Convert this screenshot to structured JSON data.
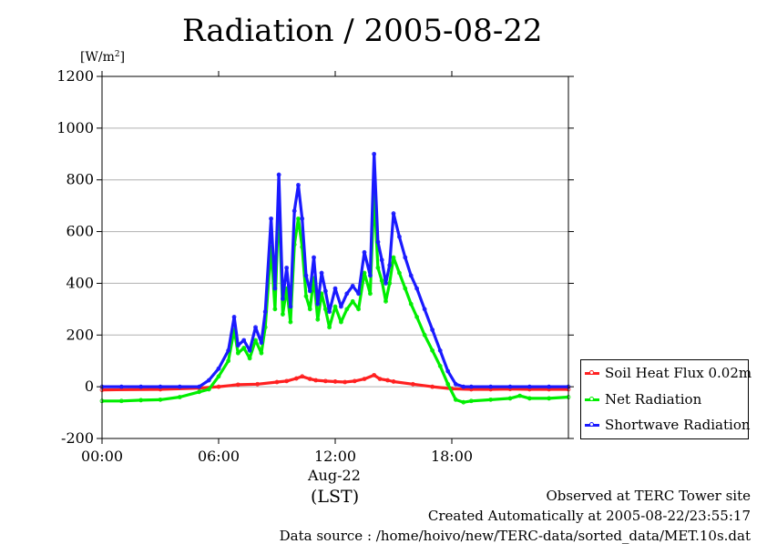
{
  "title": "Radiation / 2005-08-22",
  "unit_label": "[W/m",
  "unit_exp": "2",
  "unit_close": "]",
  "x_date_label": "Aug-22",
  "x_axis_label": "(LST)",
  "footer": {
    "line1": "Observed at TERC Tower site",
    "line2": "Created Automatically at 2005-08-22/23:55:17",
    "line3": "Data source : /home/hoivo/new/TERC-data/sorted_data/MET.10s.dat"
  },
  "colors": {
    "soil": "#ff2020",
    "net": "#00ee00",
    "shortwave": "#1a1aff",
    "grid": "#b0b0b0"
  },
  "chart_data": {
    "type": "line",
    "title": "Radiation / 2005-08-22",
    "ylabel": "[W/m2]",
    "xlabel": "(LST)",
    "xlim": [
      0,
      24
    ],
    "ylim": [
      -200,
      1200
    ],
    "grid": true,
    "legend_position": "right",
    "yticks": [
      -200,
      0,
      200,
      400,
      600,
      800,
      1000,
      1200
    ],
    "ytick_labels": [
      "-200",
      "0",
      "200",
      "400",
      "600",
      "800",
      "1000",
      "1200"
    ],
    "xticks": [
      0,
      6,
      12,
      18
    ],
    "xtick_labels": [
      "00:00",
      "06:00",
      "12:00",
      "18:00"
    ],
    "series": [
      {
        "name": "Soil Heat Flux 0.02m",
        "color_key": "soil",
        "x": [
          0,
          3,
          5,
          6,
          7,
          8,
          9,
          9.5,
          10,
          10.3,
          10.7,
          11,
          11.5,
          12,
          12.5,
          13,
          13.5,
          14,
          14.3,
          14.7,
          15,
          16,
          17,
          18,
          19,
          20,
          21,
          22,
          23,
          24
        ],
        "y": [
          -12,
          -10,
          -5,
          0,
          8,
          10,
          18,
          22,
          32,
          40,
          30,
          25,
          22,
          20,
          18,
          22,
          30,
          45,
          30,
          25,
          20,
          10,
          0,
          -8,
          -10,
          -10,
          -9,
          -10,
          -10,
          -10
        ]
      },
      {
        "name": "Net Radiation",
        "color_key": "net",
        "x": [
          0,
          1,
          2,
          3,
          4,
          5,
          5.5,
          6,
          6.5,
          6.8,
          7,
          7.3,
          7.6,
          7.9,
          8.2,
          8.4,
          8.7,
          8.9,
          9.1,
          9.3,
          9.5,
          9.7,
          9.9,
          10.1,
          10.3,
          10.5,
          10.7,
          10.9,
          11.1,
          11.3,
          11.5,
          11.7,
          12,
          12.3,
          12.6,
          12.9,
          13.2,
          13.5,
          13.8,
          14,
          14.2,
          14.4,
          14.6,
          14.8,
          15,
          15.3,
          15.6,
          15.9,
          16.2,
          16.6,
          17,
          17.4,
          17.8,
          18.2,
          18.6,
          19,
          20,
          21,
          21.5,
          22,
          23,
          24
        ],
        "y": [
          -55,
          -55,
          -52,
          -50,
          -40,
          -20,
          -10,
          40,
          100,
          220,
          130,
          150,
          110,
          180,
          130,
          230,
          540,
          300,
          720,
          280,
          380,
          250,
          550,
          650,
          540,
          350,
          300,
          420,
          260,
          360,
          300,
          230,
          310,
          250,
          300,
          330,
          300,
          440,
          360,
          750,
          460,
          410,
          330,
          400,
          500,
          440,
          380,
          320,
          270,
          200,
          140,
          80,
          10,
          -50,
          -60,
          -55,
          -50,
          -45,
          -35,
          -45,
          -45,
          -40
        ]
      },
      {
        "name": "Shortwave Radiation",
        "color_key": "shortwave",
        "x": [
          0,
          1,
          2,
          3,
          4,
          5,
          5.5,
          6,
          6.5,
          6.8,
          7,
          7.3,
          7.6,
          7.9,
          8.2,
          8.4,
          8.7,
          8.9,
          9.1,
          9.3,
          9.5,
          9.7,
          9.9,
          10.1,
          10.3,
          10.5,
          10.7,
          10.9,
          11.1,
          11.3,
          11.5,
          11.7,
          12,
          12.3,
          12.6,
          12.9,
          13.2,
          13.5,
          13.8,
          14,
          14.2,
          14.4,
          14.6,
          14.8,
          15,
          15.3,
          15.6,
          15.9,
          16.2,
          16.6,
          17,
          17.4,
          17.8,
          18.2,
          18.6,
          19,
          20,
          21,
          22,
          23,
          24
        ],
        "y": [
          0,
          0,
          0,
          0,
          0,
          0,
          25,
          70,
          140,
          270,
          160,
          180,
          140,
          230,
          170,
          290,
          650,
          380,
          820,
          340,
          460,
          310,
          680,
          780,
          650,
          430,
          370,
          500,
          320,
          440,
          370,
          290,
          380,
          310,
          360,
          390,
          360,
          520,
          430,
          900,
          560,
          490,
          400,
          470,
          670,
          580,
          500,
          430,
          380,
          300,
          220,
          140,
          60,
          10,
          0,
          0,
          0,
          0,
          0,
          0,
          0
        ]
      }
    ]
  }
}
